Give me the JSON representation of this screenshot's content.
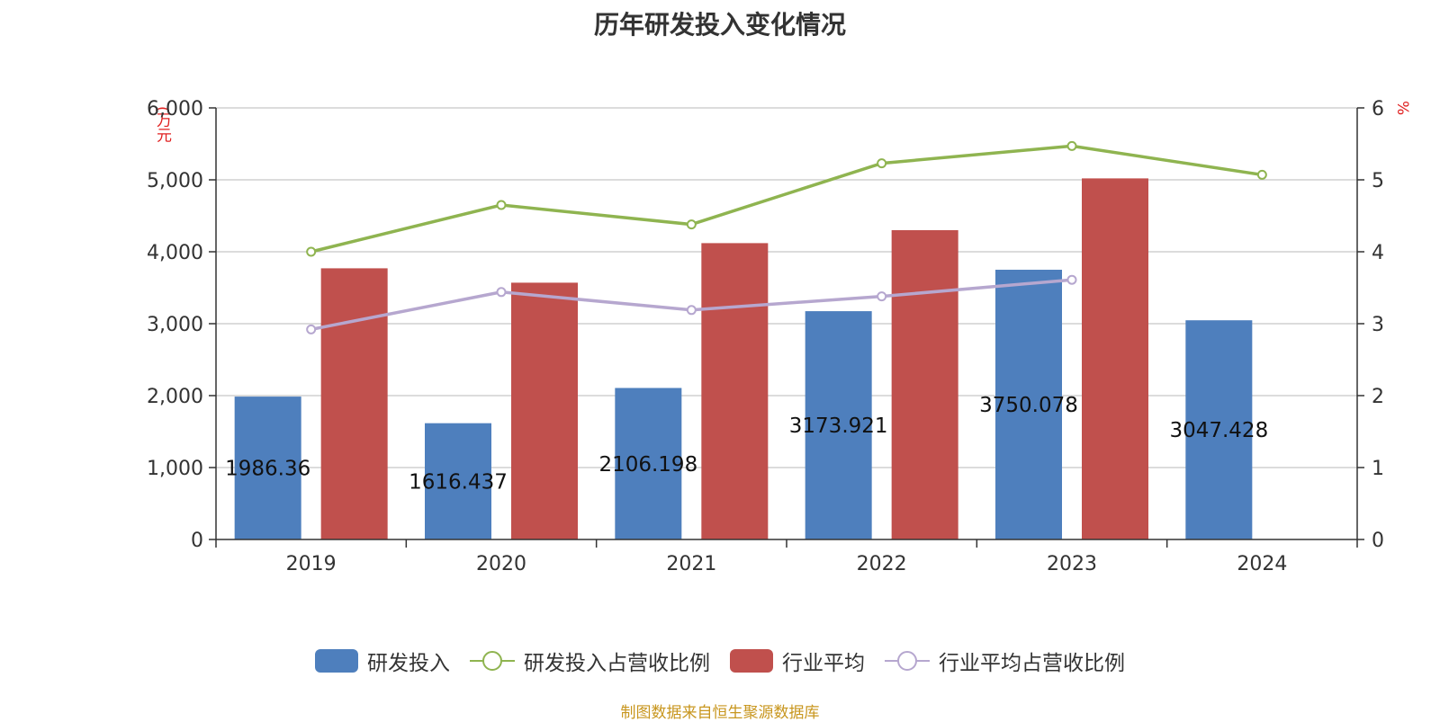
{
  "title": "历年研发投入变化情况",
  "source": "制图数据来自恒生聚源数据库",
  "axes": {
    "left_unit": "(万元",
    "right_unit": "%"
  },
  "legend": [
    {
      "label": "研发投入",
      "type": "bar",
      "color": "#4e7fbd"
    },
    {
      "label": "研发投入占营收比例",
      "type": "line",
      "color": "#8fb450"
    },
    {
      "label": "行业平均",
      "type": "bar",
      "color": "#c0504d"
    },
    {
      "label": "行业平均占营收比例",
      "type": "line",
      "color": "#b6a7cf"
    }
  ],
  "chart_data": {
    "type": "bar",
    "title": "历年研发投入变化情况",
    "categories": [
      "2019",
      "2020",
      "2021",
      "2022",
      "2023",
      "2024"
    ],
    "ylim": [
      0,
      6000
    ],
    "y_ticks": [
      "0",
      "1,000",
      "2,000",
      "3,000",
      "4,000",
      "5,000",
      "6,000"
    ],
    "y2lim": [
      0,
      6
    ],
    "y2_ticks": [
      "0",
      "1",
      "2",
      "3",
      "4",
      "5",
      "6"
    ],
    "grid": true,
    "legend_position": "bottom",
    "series": [
      {
        "name": "研发投入",
        "type": "bar",
        "axis": "left",
        "color": "#4e7fbd",
        "values": [
          1986.36,
          1616.437,
          2106.198,
          3173.921,
          3750.078,
          3047.428
        ],
        "labels": [
          "1986.36",
          "1616.437",
          "2106.198",
          "3173.921",
          "3750.078",
          "3047.428"
        ]
      },
      {
        "name": "行业平均",
        "type": "bar",
        "axis": "left",
        "color": "#c0504d",
        "values": [
          3770,
          3570,
          4120,
          4300,
          5020,
          null
        ]
      },
      {
        "name": "研发投入占营收比例",
        "type": "line",
        "axis": "right",
        "color": "#8fb450",
        "values": [
          4.0,
          4.65,
          4.38,
          5.23,
          5.47,
          5.07
        ]
      },
      {
        "name": "行业平均占营收比例",
        "type": "line",
        "axis": "right",
        "color": "#b6a7cf",
        "values": [
          2.92,
          3.44,
          3.19,
          3.38,
          3.61,
          null
        ]
      }
    ]
  }
}
